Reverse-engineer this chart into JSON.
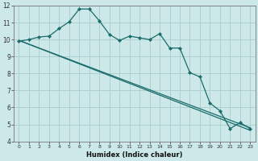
{
  "xlabel": "Humidex (Indice chaleur)",
  "background_color": "#cce8e8",
  "grid_color": "#aacccc",
  "line_color": "#1a6b6b",
  "x_values": [
    0,
    1,
    2,
    3,
    4,
    5,
    6,
    7,
    8,
    9,
    10,
    11,
    12,
    13,
    14,
    15,
    16,
    17,
    18,
    19,
    20,
    21,
    22,
    23
  ],
  "line1_y": [
    9.9,
    10.0,
    10.15,
    10.2,
    10.65,
    11.05,
    11.8,
    11.8,
    11.1,
    10.3,
    9.95,
    10.2,
    10.1,
    10.0,
    10.35,
    9.5,
    9.5,
    8.05,
    7.8,
    6.25,
    5.8,
    4.75,
    5.1,
    4.75
  ],
  "trend1_x": [
    0,
    23
  ],
  "trend1_y": [
    9.95,
    4.8
  ],
  "trend2_x": [
    0,
    23
  ],
  "trend2_y": [
    9.95,
    4.65
  ],
  "ylim": [
    4,
    12
  ],
  "xlim": [
    -0.5,
    23.5
  ],
  "yticks": [
    4,
    5,
    6,
    7,
    8,
    9,
    10,
    11,
    12
  ],
  "xticks": [
    0,
    1,
    2,
    3,
    4,
    5,
    6,
    7,
    8,
    9,
    10,
    11,
    12,
    13,
    14,
    15,
    16,
    17,
    18,
    19,
    20,
    21,
    22,
    23
  ]
}
